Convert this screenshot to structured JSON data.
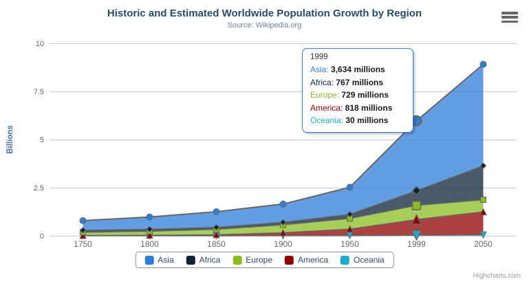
{
  "header": {
    "title": "Historic and Estimated Worldwide Population Growth by Region",
    "subtitle": "Source: Wikipedia.org"
  },
  "chart_data": {
    "type": "area",
    "stacking": "normal",
    "title": "Historic and Estimated Worldwide Population Growth by Region",
    "subtitle": "Source: Wikipedia.org",
    "categories": [
      "1750",
      "1800",
      "1850",
      "1900",
      "1950",
      "1999",
      "2050"
    ],
    "series": [
      {
        "name": "Asia",
        "color": "#2f7ed8",
        "marker": "circle",
        "values": [
          502,
          635,
          809,
          947,
          1402,
          3634,
          5268
        ]
      },
      {
        "name": "Africa",
        "color": "#0d233a",
        "marker": "diamond",
        "values": [
          106,
          107,
          111,
          133,
          221,
          767,
          1766
        ]
      },
      {
        "name": "Europe",
        "color": "#8bbc21",
        "marker": "square",
        "values": [
          163,
          203,
          276,
          408,
          547,
          729,
          628
        ]
      },
      {
        "name": "America",
        "color": "#910000",
        "marker": "triangle",
        "values": [
          18,
          31,
          54,
          156,
          339,
          818,
          1201
        ]
      },
      {
        "name": "Oceania",
        "color": "#1aadce",
        "marker": "triangle-down",
        "values": [
          2,
          2,
          2,
          6,
          13,
          30,
          46
        ]
      }
    ],
    "values_unit": "millions",
    "stack_order_bottom_to_top": [
      "Oceania",
      "America",
      "Europe",
      "Africa",
      "Asia"
    ],
    "xlabel": "",
    "ylabel": "Billions",
    "yticks": [
      0,
      2.5,
      5,
      7.5,
      10
    ],
    "ylim": [
      0,
      10
    ],
    "grid": true,
    "legend_position": "bottom",
    "hover_category_index": 5
  },
  "tooltip": {
    "header": "1999",
    "rows": [
      {
        "name": "Asia",
        "color": "#2f7ed8",
        "value": "3,634 millions"
      },
      {
        "name": "Africa",
        "color": "#0d233a",
        "value": "767 millions"
      },
      {
        "name": "Europe",
        "color": "#8bbc21",
        "value": "729 millions"
      },
      {
        "name": "America",
        "color": "#910000",
        "value": "818 millions"
      },
      {
        "name": "Oceania",
        "color": "#1aadce",
        "value": "30 millions"
      }
    ]
  },
  "credits": {
    "label": "Highcharts.com"
  },
  "icons": {
    "menu": "hamburger-menu-icon"
  },
  "colors": {
    "title": "#274b6d",
    "subtitle": "#6d869f",
    "yaxis_title": "#4572a7",
    "axis_labels": "#666666",
    "series_outline": "#666666",
    "gridline": "#c8c8c8",
    "xaxis_line": "#c0d0e0",
    "tooltip_border": "#2f7ed8",
    "legend_text": "#274b6d",
    "credits_text": "#999999"
  }
}
